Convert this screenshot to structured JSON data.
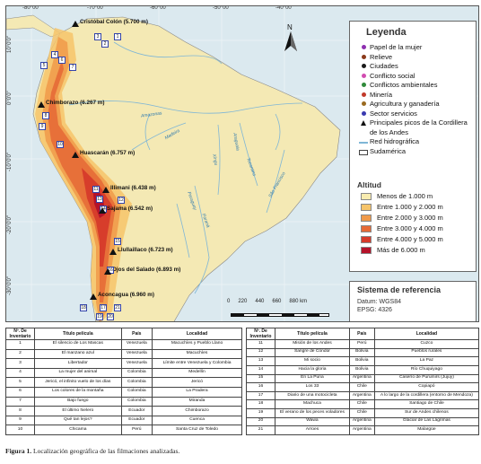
{
  "coordinates": {
    "top": [
      "-80°00'",
      "-70°00'",
      "-60°00'",
      "-50°00'",
      "-40°00'"
    ],
    "left": [
      "10°0'0\"",
      "0°0'0\"",
      "-10°0'0\"",
      "-20°0'0\"",
      "-30°0'0\""
    ]
  },
  "legend": {
    "title": "Leyenda",
    "items": [
      {
        "label": "Papel de la mujer",
        "symbol": "dot",
        "color": "#8e2fb0"
      },
      {
        "label": "Relieve",
        "symbol": "dot",
        "color": "#8b3a1a"
      },
      {
        "label": "Ciudades",
        "symbol": "dot",
        "color": "#1a1a1a"
      },
      {
        "label": "Conflicto social",
        "symbol": "dot",
        "color": "#d24bb0"
      },
      {
        "label": "Conflictos ambientales",
        "symbol": "dot",
        "color": "#2f8a3a"
      },
      {
        "label": "Minería",
        "symbol": "dot",
        "color": "#c23a2a"
      },
      {
        "label": "Agricultura y ganadería",
        "symbol": "dot",
        "color": "#9a6a20"
      },
      {
        "label": "Sector servicios",
        "symbol": "dot",
        "color": "#3a3ab0"
      },
      {
        "label": "Principales picos de la Cordillera de los Andes",
        "symbol": "triangle",
        "color": "#111111"
      },
      {
        "label": "Red hidrográfica",
        "symbol": "line",
        "color": "#7fb6d6"
      },
      {
        "label": "Sudamérica",
        "symbol": "box",
        "color": "#ffffff"
      }
    ]
  },
  "altitude": {
    "title": "Altitud",
    "items": [
      {
        "label": "Menos de 1.000 m",
        "color": "#f8ecb0"
      },
      {
        "label": "Entre 1.000 y 2.000 m",
        "color": "#f6c46a"
      },
      {
        "label": "Entre 2.000 y 3.000 m",
        "color": "#f09a4a"
      },
      {
        "label": "Entre 3.000 y 4.000 m",
        "color": "#e66a36"
      },
      {
        "label": "Entre 4.000 y 5.000 m",
        "color": "#d63a2a"
      },
      {
        "label": "Más de 6.000 m",
        "color": "#b5122a"
      }
    ]
  },
  "reference_system": {
    "title": "Sistema de referencia",
    "datum": "Datum: WGS84",
    "epsg": "EPSG: 4326"
  },
  "scale": {
    "labels": [
      "0",
      "220",
      "440",
      "660",
      "880 km"
    ]
  },
  "north_label": "N",
  "peaks": [
    {
      "label": "Cristóbal Colón (5.700 m)"
    },
    {
      "label": "Chimborazo (6.267 m)"
    },
    {
      "label": "Huascarán (6.757 m)"
    },
    {
      "label": "Illimani (6.438 m)"
    },
    {
      "label": "Sajama (6.542 m)"
    },
    {
      "label": "Llullaillaco (6.723 m)"
    },
    {
      "label": "Ojos del Salado (6.893 m)"
    },
    {
      "label": "Aconcagua (6.960 m)"
    }
  ],
  "rivers": [
    "Amazonas",
    "Madeira",
    "Tocantins",
    "Xingu",
    "Paraná",
    "Paraguay",
    "São Francisco",
    "Araguaia"
  ],
  "number_labels": [
    "1",
    "2",
    "3",
    "4",
    "5",
    "6",
    "7",
    "8",
    "9",
    "10",
    "11",
    "12",
    "13",
    "14",
    "15",
    "16",
    "17",
    "18",
    "19",
    "20",
    "21"
  ],
  "table_headers": {
    "num": "Nº. De Inventario",
    "title": "Título película",
    "country": "País",
    "location": "Localidad"
  },
  "films_left": [
    {
      "num": "1",
      "title": "El silencio de Los Mascas",
      "country": "Venezuela",
      "location": "Macuchíes y Pueblo Llano"
    },
    {
      "num": "2",
      "title": "El manzano azul",
      "country": "Venezuela",
      "location": "Macuchíes"
    },
    {
      "num": "3",
      "title": "Libertador",
      "country": "Venezuela",
      "location": "Límite entre Venezuela y Colombia"
    },
    {
      "num": "4",
      "title": "La mujer del animal",
      "country": "Colombia",
      "location": "Medellín"
    },
    {
      "num": "5",
      "title": "Jericó, el infinito vuelo de los días",
      "country": "Colombia",
      "location": "Jericó"
    },
    {
      "num": "6",
      "title": "Los colores de la montaña",
      "country": "Colombia",
      "location": "La Pradera"
    },
    {
      "num": "7",
      "title": "Bajo fuego",
      "country": "Colombia",
      "location": "Miranda"
    },
    {
      "num": "8",
      "title": "El último hielero",
      "country": "Ecuador",
      "location": "Chimborazo"
    },
    {
      "num": "9",
      "title": "Qué tan lejos?",
      "country": "Ecuador",
      "location": "Cuenca"
    },
    {
      "num": "10",
      "title": "Chicama",
      "country": "Perú",
      "location": "Santa Cruz de Toledo"
    }
  ],
  "films_right": [
    {
      "num": "11",
      "title": "Misión de los Andes",
      "country": "Perú",
      "location": "Cuzco"
    },
    {
      "num": "12",
      "title": "Sangre de Cóndor",
      "country": "Bolivia",
      "location": "Pueblos rurales"
    },
    {
      "num": "13",
      "title": "Mi socio",
      "country": "Bolivia",
      "location": "La Paz"
    },
    {
      "num": "14",
      "title": "Hacia la gloria",
      "country": "Bolivia",
      "location": "Río Chuquiyago"
    },
    {
      "num": "15",
      "title": "En La Puna",
      "country": "Argentina",
      "location": "Caserío de Purumirs (Jujuy)"
    },
    {
      "num": "16",
      "title": "Los 33",
      "country": "Chile",
      "location": "Copiapó"
    },
    {
      "num": "17",
      "title": "Diario de una motocicleta",
      "country": "Argentina",
      "location": "A lo largo de la cordillera (entorno de Mendoza)"
    },
    {
      "num": "18",
      "title": "Machuca",
      "country": "Chile",
      "location": "Santiago de Chile"
    },
    {
      "num": "19",
      "title": "El verano de los peces voladores",
      "country": "Chile",
      "location": "Sur de Andes chilenos"
    },
    {
      "num": "20",
      "title": "Wawa",
      "country": "Argentina",
      "location": "Glaciar de Las Lágrimas"
    },
    {
      "num": "21",
      "title": "Arroes",
      "country": "Argentina",
      "location": "Malargüe"
    }
  ],
  "caption": {
    "label": "Figura 1.",
    "text": "Localización geográfica de las filmaciones analizadas."
  }
}
